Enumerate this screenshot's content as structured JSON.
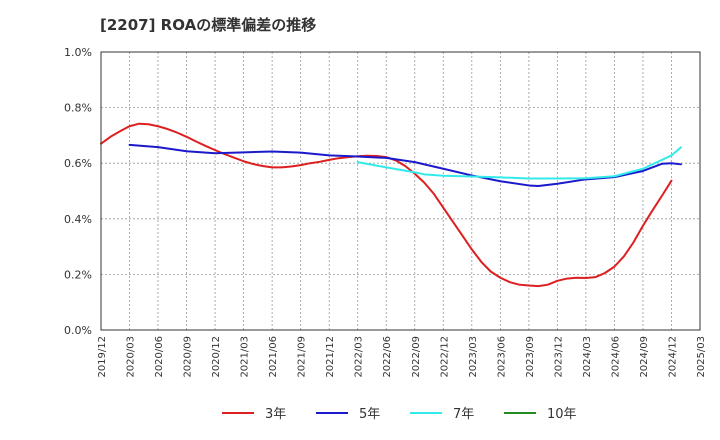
{
  "chart_data": {
    "type": "line",
    "title": "[2207]  ROAの標準偏差の推移",
    "xlabel": "",
    "ylabel": "",
    "y_ticks": [
      "0.0%",
      "0.2%",
      "0.4%",
      "0.6%",
      "0.8%",
      "1.0%"
    ],
    "ylim": [
      0,
      1.0
    ],
    "x_ticks": [
      "2019/12",
      "2020/03",
      "2020/06",
      "2020/09",
      "2020/12",
      "2021/03",
      "2021/06",
      "2021/09",
      "2021/12",
      "2022/03",
      "2022/06",
      "2022/09",
      "2022/12",
      "2023/03",
      "2023/06",
      "2023/09",
      "2023/12",
      "2024/03",
      "2024/06",
      "2024/09",
      "2024/12",
      "2025/03"
    ],
    "grid": true,
    "legend_position": "bottom",
    "series": [
      {
        "name": "3年",
        "color": "#dd1f1f",
        "points": [
          [
            "2019/12",
            0.67
          ],
          [
            "2020/01",
            0.695
          ],
          [
            "2020/02",
            0.715
          ],
          [
            "2020/03",
            0.733
          ],
          [
            "2020/04",
            0.742
          ],
          [
            "2020/05",
            0.74
          ],
          [
            "2020/06",
            0.733
          ],
          [
            "2020/07",
            0.723
          ],
          [
            "2020/08",
            0.71
          ],
          [
            "2020/09",
            0.695
          ],
          [
            "2020/10",
            0.678
          ],
          [
            "2020/11",
            0.662
          ],
          [
            "2020/12",
            0.647
          ],
          [
            "2021/01",
            0.633
          ],
          [
            "2021/02",
            0.62
          ],
          [
            "2021/03",
            0.607
          ],
          [
            "2021/04",
            0.597
          ],
          [
            "2021/05",
            0.59
          ],
          [
            "2021/06",
            0.585
          ],
          [
            "2021/07",
            0.585
          ],
          [
            "2021/08",
            0.588
          ],
          [
            "2021/09",
            0.593
          ],
          [
            "2021/10",
            0.6
          ],
          [
            "2021/11",
            0.605
          ],
          [
            "2021/12",
            0.612
          ],
          [
            "2022/01",
            0.618
          ],
          [
            "2022/02",
            0.622
          ],
          [
            "2022/03",
            0.625
          ],
          [
            "2022/04",
            0.627
          ],
          [
            "2022/05",
            0.626
          ],
          [
            "2022/06",
            0.622
          ],
          [
            "2022/07",
            0.61
          ],
          [
            "2022/08",
            0.59
          ],
          [
            "2022/09",
            0.562
          ],
          [
            "2022/10",
            0.53
          ],
          [
            "2022/11",
            0.49
          ],
          [
            "2022/12",
            0.44
          ],
          [
            "2023/01",
            0.39
          ],
          [
            "2023/02",
            0.34
          ],
          [
            "2023/03",
            0.29
          ],
          [
            "2023/04",
            0.245
          ],
          [
            "2023/05",
            0.21
          ],
          [
            "2023/06",
            0.188
          ],
          [
            "2023/07",
            0.172
          ],
          [
            "2023/08",
            0.163
          ],
          [
            "2023/09",
            0.16
          ],
          [
            "2023/10",
            0.158
          ],
          [
            "2023/11",
            0.163
          ],
          [
            "2023/12",
            0.177
          ],
          [
            "2024/01",
            0.185
          ],
          [
            "2024/02",
            0.188
          ],
          [
            "2024/03",
            0.187
          ],
          [
            "2024/04",
            0.19
          ],
          [
            "2024/05",
            0.205
          ],
          [
            "2024/06",
            0.228
          ],
          [
            "2024/07",
            0.265
          ],
          [
            "2024/08",
            0.315
          ],
          [
            "2024/09",
            0.375
          ],
          [
            "2024/10",
            0.43
          ],
          [
            "2024/11",
            0.483
          ],
          [
            "2024/12",
            0.537
          ]
        ]
      },
      {
        "name": "5年",
        "color": "#1a1acc",
        "points": [
          [
            "2020/03",
            0.666
          ],
          [
            "2020/06",
            0.658
          ],
          [
            "2020/09",
            0.643
          ],
          [
            "2020/12",
            0.636
          ],
          [
            "2021/03",
            0.639
          ],
          [
            "2021/06",
            0.642
          ],
          [
            "2021/09",
            0.638
          ],
          [
            "2021/12",
            0.628
          ],
          [
            "2022/03",
            0.624
          ],
          [
            "2022/06",
            0.619
          ],
          [
            "2022/09",
            0.604
          ],
          [
            "2022/12",
            0.58
          ],
          [
            "2023/03",
            0.556
          ],
          [
            "2023/06",
            0.535
          ],
          [
            "2023/09",
            0.52
          ],
          [
            "2023/10",
            0.518
          ],
          [
            "2023/12",
            0.526
          ],
          [
            "2024/03",
            0.542
          ],
          [
            "2024/06",
            0.55
          ],
          [
            "2024/09",
            0.572
          ],
          [
            "2024/11",
            0.598
          ],
          [
            "2024/12",
            0.6
          ],
          [
            "2025/01",
            0.596
          ]
        ]
      },
      {
        "name": "7年",
        "color": "#33eaea",
        "points": [
          [
            "2022/03",
            0.604
          ],
          [
            "2022/06",
            0.585
          ],
          [
            "2022/09",
            0.567
          ],
          [
            "2022/10",
            0.56
          ],
          [
            "2022/12",
            0.555
          ],
          [
            "2023/03",
            0.552
          ],
          [
            "2023/06",
            0.549
          ],
          [
            "2023/09",
            0.545
          ],
          [
            "2023/12",
            0.545
          ],
          [
            "2024/03",
            0.546
          ],
          [
            "2024/06",
            0.553
          ],
          [
            "2024/09",
            0.58
          ],
          [
            "2024/12",
            0.628
          ],
          [
            "2025/01",
            0.657
          ]
        ]
      },
      {
        "name": "10年",
        "color": "#228b22",
        "points": []
      }
    ]
  }
}
